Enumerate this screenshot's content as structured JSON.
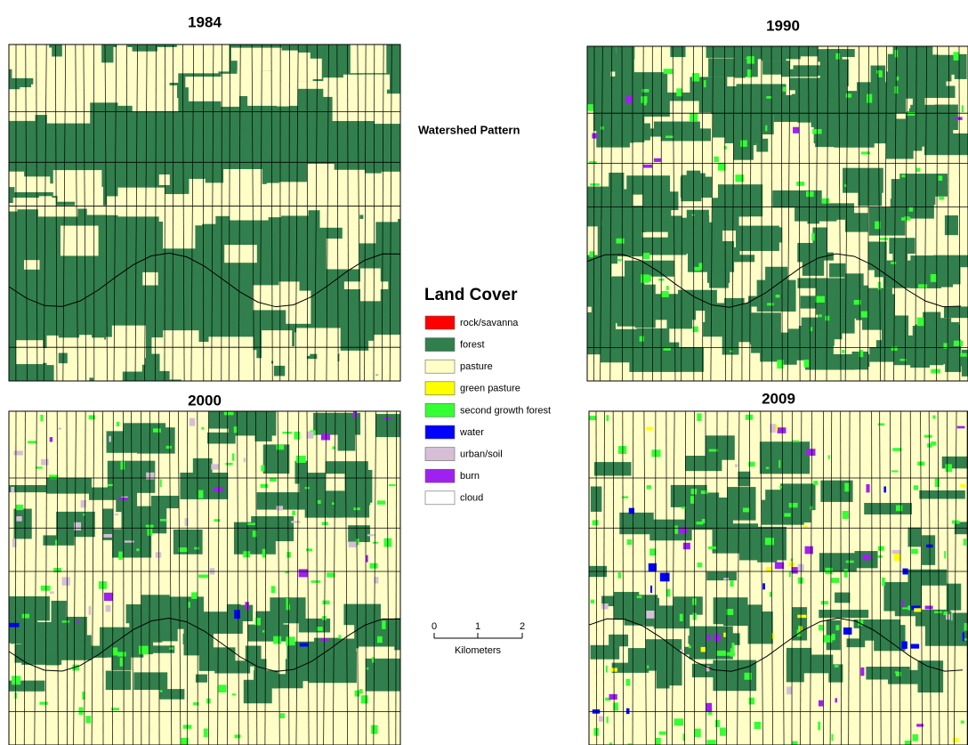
{
  "panels": [
    {
      "title": "1984"
    },
    {
      "title": "1990"
    },
    {
      "title": "2000"
    },
    {
      "title": "2009"
    }
  ],
  "watershed_label": "Watershed Pattern",
  "legend": {
    "title": "Land Cover",
    "items": [
      {
        "label": "rock/savanna",
        "color": "#ff0000"
      },
      {
        "label": "forest",
        "color": "#317f4c"
      },
      {
        "label": "pasture",
        "color": "#fffec6"
      },
      {
        "label": "green pasture",
        "color": "#ffff00"
      },
      {
        "label": "second growth forest",
        "color": "#33ff33"
      },
      {
        "label": "water",
        "color": "#0000ff"
      },
      {
        "label": "urban/soil",
        "color": "#d6bfd6"
      },
      {
        "label": "burn",
        "color": "#a020f0"
      },
      {
        "label": "cloud",
        "color": "#ffffff"
      }
    ]
  },
  "scale_bar": {
    "ticks": [
      "0",
      "1",
      "2"
    ],
    "unit": "Kilometers"
  }
}
